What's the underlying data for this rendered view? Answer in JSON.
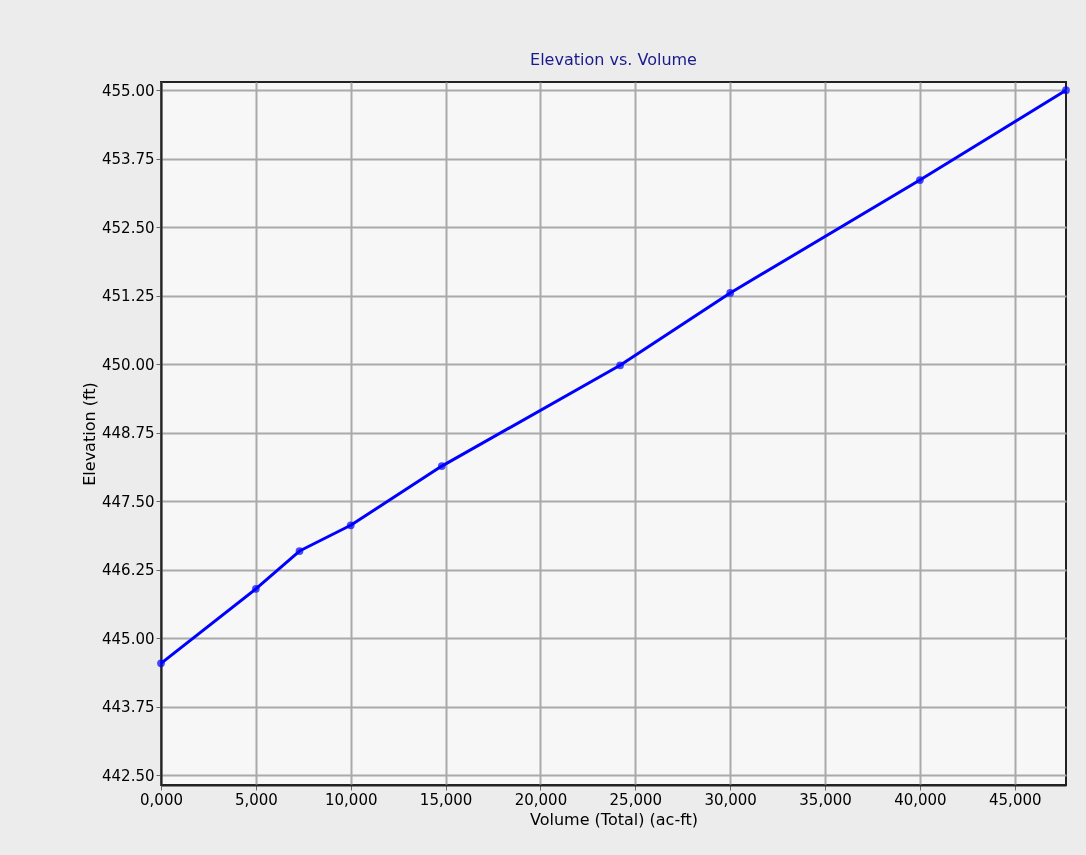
{
  "chart_data": {
    "type": "line",
    "title": "Elevation vs. Volume",
    "xlabel": "Volume (Total) (ac-ft)",
    "ylabel": "Elevation (ft)",
    "x": [
      0,
      5000,
      7300,
      10000,
      14800,
      24200,
      30000,
      40000,
      47700
    ],
    "series": [
      {
        "color": "#0000ff",
        "values": [
          444.54,
          445.9,
          446.59,
          447.06,
          448.14,
          449.98,
          451.3,
          453.36,
          455.0
        ]
      }
    ],
    "xlim": [
      0,
      47700
    ],
    "ylim": [
      442.32,
      455.15
    ],
    "xticks": [
      {
        "value": 0,
        "label": "0,000"
      },
      {
        "value": 5000,
        "label": "5,000"
      },
      {
        "value": 10000,
        "label": "10,000"
      },
      {
        "value": 15000,
        "label": "15,000"
      },
      {
        "value": 20000,
        "label": "20,000"
      },
      {
        "value": 25000,
        "label": "25,000"
      },
      {
        "value": 30000,
        "label": "30,000"
      },
      {
        "value": 35000,
        "label": "35,000"
      },
      {
        "value": 40000,
        "label": "40,000"
      },
      {
        "value": 45000,
        "label": "45,000"
      }
    ],
    "yticks": [
      {
        "value": 442.5,
        "label": "442.50"
      },
      {
        "value": 443.75,
        "label": "443.75"
      },
      {
        "value": 445,
        "label": "445.00"
      },
      {
        "value": 446.25,
        "label": "446.25"
      },
      {
        "value": 447.5,
        "label": "447.50"
      },
      {
        "value": 448.75,
        "label": "448.75"
      },
      {
        "value": 450,
        "label": "450.00"
      },
      {
        "value": 451.25,
        "label": "451.25"
      },
      {
        "value": 452.5,
        "label": "452.50"
      },
      {
        "value": 453.75,
        "label": "453.75"
      },
      {
        "value": 455,
        "label": "455.00"
      }
    ],
    "grid": true,
    "marker": "circle",
    "line_style": "solid"
  }
}
